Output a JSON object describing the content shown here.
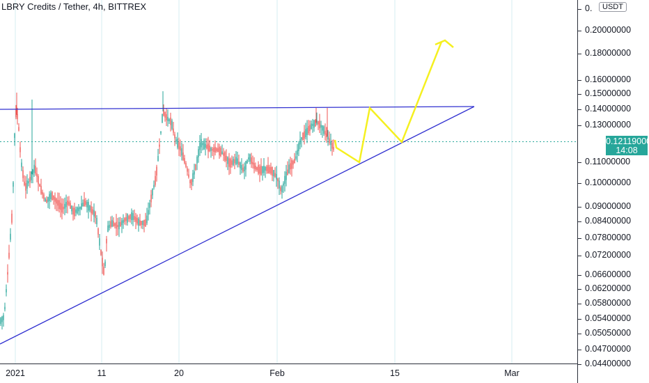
{
  "title": "LBRY Credits / Tether, 4h, BITTREX",
  "currency": "USDT",
  "last_price": "0.12119000",
  "countdown": "14:08",
  "price_axis": {
    "top_partial": "0.",
    "ticks": [
      {
        "label": "0.20000000",
        "value": 0.2
      },
      {
        "label": "0.18000000",
        "value": 0.18
      },
      {
        "label": "0.16000000",
        "value": 0.16
      },
      {
        "label": "0.15000000",
        "value": 0.15
      },
      {
        "label": "0.14000000",
        "value": 0.14
      },
      {
        "label": "0.13000000",
        "value": 0.13
      },
      {
        "label": "0.11000000",
        "value": 0.11
      },
      {
        "label": "0.10000000",
        "value": 0.1
      },
      {
        "label": "0.09000000",
        "value": 0.09
      },
      {
        "label": "0.08400000",
        "value": 0.084
      },
      {
        "label": "0.07800000",
        "value": 0.078
      },
      {
        "label": "0.07200000",
        "value": 0.072
      },
      {
        "label": "0.06600000",
        "value": 0.066
      },
      {
        "label": "0.06200000",
        "value": 0.062
      },
      {
        "label": "0.05800000",
        "value": 0.058
      },
      {
        "label": "0.05400000",
        "value": 0.054
      },
      {
        "label": "0.05050000",
        "value": 0.0505
      },
      {
        "label": "0.04700000",
        "value": 0.047
      },
      {
        "label": "0.04400000",
        "value": 0.044
      }
    ]
  },
  "time_axis": {
    "ticks": [
      "2021",
      "11",
      "20",
      "Feb",
      "15",
      "Mar"
    ]
  },
  "colors": {
    "up": "#26a69a",
    "down": "#ef5350",
    "trendline": "#3030d0",
    "projection": "#f5f020",
    "grid": "#d6eef1"
  }
}
